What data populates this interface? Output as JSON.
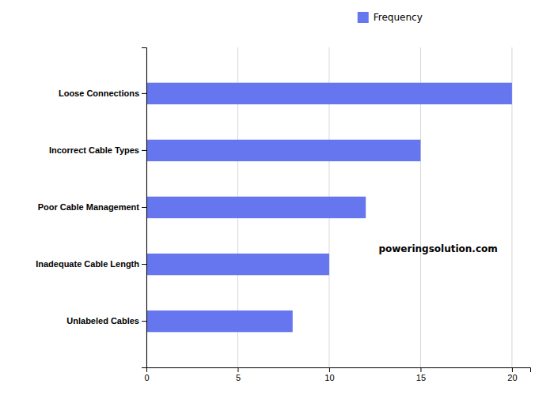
{
  "chart_data": {
    "type": "bar",
    "orientation": "horizontal",
    "categories": [
      "Unlabeled Cables",
      "Inadequate Cable Length",
      "Poor Cable Management",
      "Incorrect Cable Types",
      "Loose Connections"
    ],
    "series": [
      {
        "name": "Frequency",
        "color": "#6676ee",
        "values": [
          8,
          10,
          12,
          15,
          20
        ]
      }
    ],
    "xlim": [
      0,
      21
    ],
    "xticks": [
      0,
      5,
      10,
      15,
      20
    ],
    "grid": true,
    "legend": "top",
    "annotation": "poweringsolution.com"
  }
}
